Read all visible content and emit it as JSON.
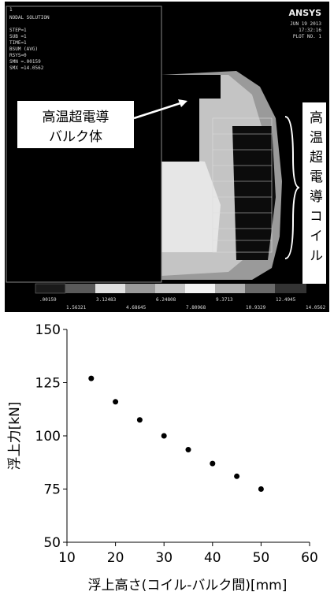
{
  "simulation": {
    "plot_number_label": "1",
    "info_lines": [
      "NODAL SOLUTION",
      "STEP=1",
      "SUB =1",
      "TIME=1",
      "BSUM     (AVG)",
      "RSYS=0",
      "SMN =.00159",
      "SMX =14.0562"
    ],
    "logo": "ANSYS",
    "date_lines": [
      "JUN 19 2013",
      "17:32:16",
      "PLOT NO.   1"
    ],
    "colorbar_labels_top": [
      ".00159",
      "3.12483",
      "6.24808",
      "9.3713",
      "12.4945"
    ],
    "colorbar_labels_bottom": [
      "1.56321",
      "4.68645",
      "7.80968",
      "10.9329",
      "14.0562"
    ],
    "bulk_label": [
      "高温超電導",
      "バルク体"
    ],
    "coil_label": "高温超電導コイル"
  },
  "chart_data": {
    "type": "scatter",
    "x_label": "浮上高さ(コイル-バルク間)[mm]",
    "y_label": "浮上力[kN]",
    "series": [
      {
        "color": "#000000",
        "x": [
          15,
          20,
          25,
          30,
          35,
          40,
          45,
          50
        ],
        "values": [
          127,
          116,
          107.5,
          100,
          93.5,
          87,
          81,
          75
        ]
      }
    ],
    "xlim": [
      10,
      60
    ],
    "xticks": [
      10,
      20,
      30,
      40,
      50,
      60
    ],
    "ylim": [
      50,
      150
    ],
    "yticks": [
      50,
      75,
      100,
      125,
      150
    ]
  }
}
